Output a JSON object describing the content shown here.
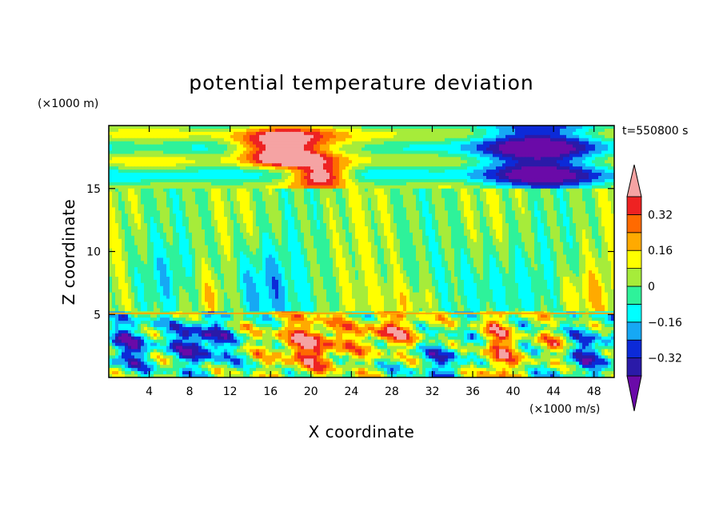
{
  "chart_data": {
    "type": "heatmap",
    "title": "potential temperature deviation",
    "xlabel": "X coordinate",
    "ylabel": "Z coordinate",
    "x_unit": "(×1000 m/s)",
    "y_unit": "(×1000 m)",
    "time_label": "t=550800 s",
    "xlim": [
      0,
      50
    ],
    "ylim": [
      0,
      20
    ],
    "x_ticks": [
      4,
      8,
      12,
      16,
      20,
      24,
      28,
      32,
      36,
      40,
      44,
      48
    ],
    "y_ticks": [
      5,
      10,
      15
    ],
    "colorbar": {
      "levels": [
        -0.4,
        -0.32,
        -0.24,
        -0.16,
        -0.08,
        0,
        0.08,
        0.16,
        0.24,
        0.32,
        0.4
      ],
      "labels": [
        "0.32",
        "0.16",
        "0",
        "−0.16",
        "−0.32"
      ],
      "label_values": [
        0.32,
        0.16,
        0,
        -0.16,
        -0.32
      ],
      "colors": [
        "#6a0aa8",
        "#2a1aa8",
        "#0c2ad8",
        "#16a8f4",
        "#00ffff",
        "#2ef29a",
        "#a6ec3a",
        "#ffff00",
        "#ffaa00",
        "#ff6a00",
        "#ee2222",
        "#f5a3a3"
      ],
      "extend": "both"
    },
    "features": [
      {
        "name": "lower layer (z<5)",
        "description": "strong mixed positive/negative perturbations"
      },
      {
        "name": "upper layer (z>15)",
        "description": "horizontal banding; pink maxima near x=14-22 at z=16-19; negative near x=36-48"
      }
    ]
  }
}
